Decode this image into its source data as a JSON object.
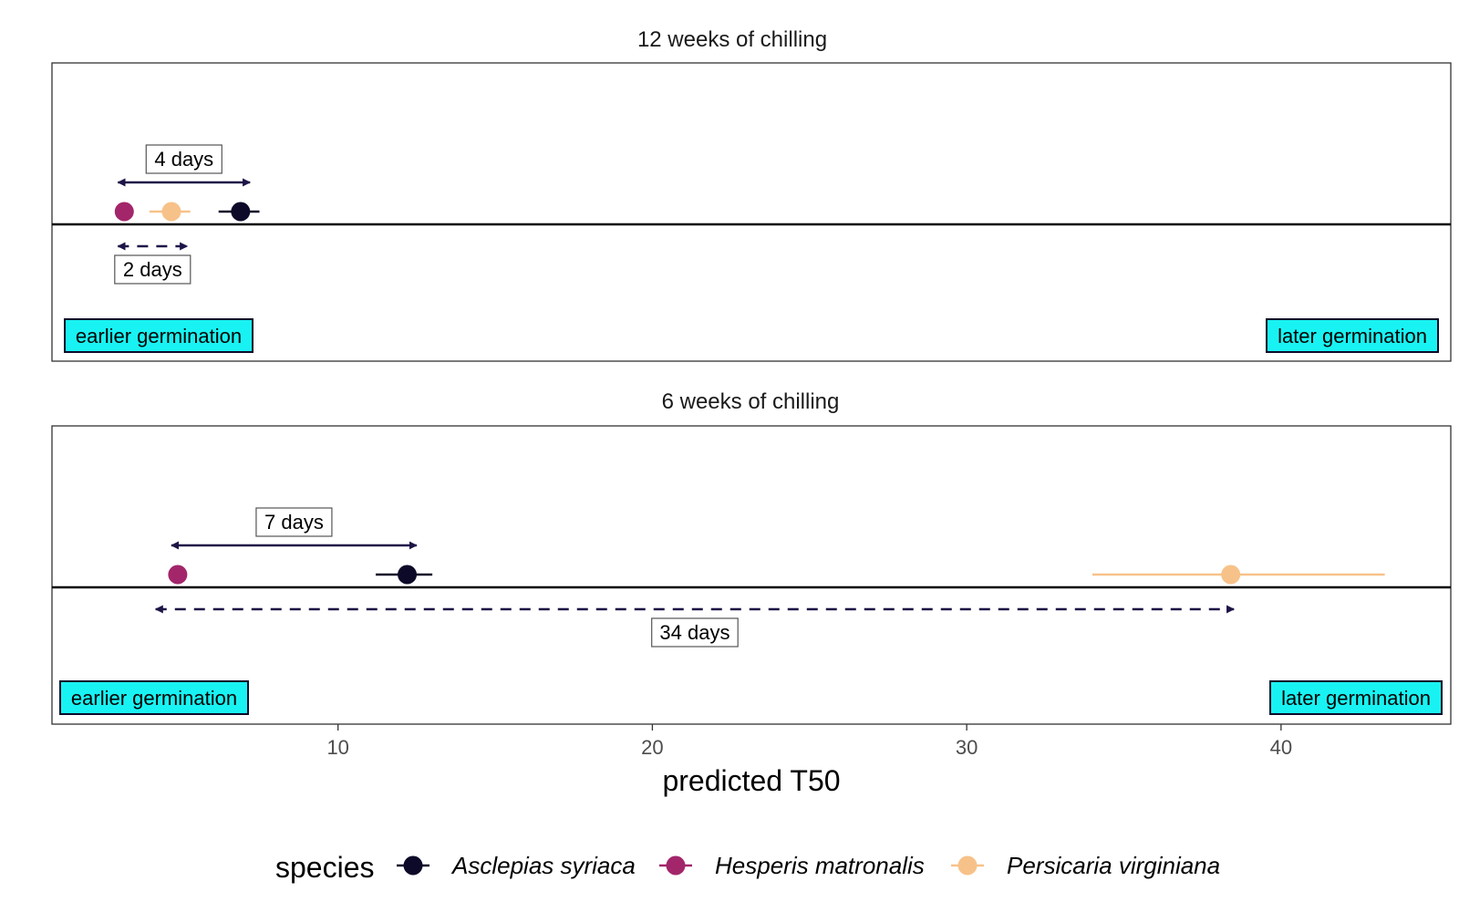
{
  "chart_data": {
    "type": "scatter",
    "xlabel": "predicted T50",
    "xlim": [
      0.9,
      45.4
    ],
    "xticks": [
      10,
      20,
      30,
      40
    ],
    "xtick_labels": [
      "10",
      "20",
      "30",
      "40"
    ],
    "grid": false,
    "legend": {
      "title": "species",
      "position": "bottom",
      "entries": [
        {
          "label": "Asclepias syriaca",
          "color": "#0d0a29"
        },
        {
          "label": "Hesperis matronalis",
          "color": "#a3266b"
        },
        {
          "label": "Persicaria virginiana",
          "color": "#f7c289"
        }
      ]
    },
    "panels": [
      {
        "title": "12 weeks of chilling",
        "points": [
          {
            "species": "Hesperis matronalis",
            "x": 3.2,
            "lo": 3.2,
            "hi": 3.2,
            "color": "#a3266b"
          },
          {
            "species": "Persicaria virginiana",
            "x": 4.7,
            "lo": 4.0,
            "hi": 5.3,
            "color": "#f7c289"
          },
          {
            "species": "Asclepias syriaca",
            "x": 6.9,
            "lo": 6.2,
            "hi": 7.5,
            "color": "#0d0a29"
          }
        ],
        "annotations": [
          {
            "text": "4 days",
            "from": 3.0,
            "to": 7.2,
            "side": "above",
            "style": "solid"
          },
          {
            "text": "2 days",
            "from": 3.0,
            "to": 5.2,
            "side": "below",
            "style": "dashed"
          }
        ],
        "region_labels": {
          "left": "earlier germination",
          "right": "later germination"
        }
      },
      {
        "title": "6 weeks of chilling",
        "points": [
          {
            "species": "Hesperis matronalis",
            "x": 4.9,
            "lo": 4.9,
            "hi": 4.9,
            "color": "#a3266b"
          },
          {
            "species": "Asclepias syriaca",
            "x": 12.2,
            "lo": 11.2,
            "hi": 13.0,
            "color": "#0d0a29"
          },
          {
            "species": "Persicaria virginiana",
            "x": 38.4,
            "lo": 34.0,
            "hi": 43.3,
            "color": "#f7c289"
          }
        ],
        "annotations": [
          {
            "text": "7 days",
            "from": 4.7,
            "to": 12.5,
            "side": "above",
            "style": "solid"
          },
          {
            "text": "34 days",
            "from": 4.2,
            "to": 38.5,
            "side": "below",
            "style": "dashed"
          }
        ],
        "region_labels": {
          "left": "earlier germination",
          "right": "later germination"
        }
      }
    ]
  },
  "colors": {
    "region_label_fill": "#19f2f2",
    "arrow": "#1f1447",
    "panel_border": "#333333",
    "baseline": "#000000"
  }
}
